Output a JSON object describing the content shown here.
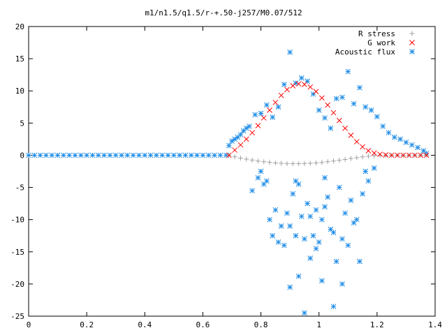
{
  "chart_data": {
    "type": "scatter",
    "title": "m1/n1.5/q1.5/r-+.50-j257/M0.07/512",
    "xlabel": "",
    "ylabel": "",
    "xlim": [
      0,
      1.4
    ],
    "ylim": [
      -25,
      20
    ],
    "x_ticks": [
      "0",
      "0.2",
      "0.4",
      "0.6",
      "0.8",
      "1",
      "1.2",
      "1.4"
    ],
    "y_ticks": [
      "20",
      "15",
      "10",
      "5",
      "0",
      "-5",
      "-10",
      "-15",
      "-20",
      "-25"
    ],
    "x_tick_values": [
      0,
      0.2,
      0.4,
      0.6,
      0.8,
      1.0,
      1.2,
      1.4
    ],
    "y_tick_values": [
      20,
      15,
      10,
      5,
      0,
      -5,
      -10,
      -15,
      -20,
      -25
    ],
    "grid": false,
    "legend_position": "top-right",
    "series": [
      {
        "name": "R stress",
        "marker": "plus",
        "color": "#a0a0a0",
        "x": [
          0.69,
          0.71,
          0.73,
          0.75,
          0.77,
          0.79,
          0.81,
          0.83,
          0.85,
          0.87,
          0.89,
          0.91,
          0.93,
          0.95,
          0.97,
          0.99,
          1.01,
          1.03,
          1.05,
          1.07,
          1.09,
          1.11,
          1.13,
          1.15,
          1.17,
          1.19,
          1.21,
          1.23,
          1.25,
          1.27,
          1.29,
          1.31,
          1.33,
          1.35,
          1.37
        ],
        "y": [
          0,
          -0.25,
          -0.45,
          -0.6,
          -0.75,
          -0.9,
          -1.0,
          -1.1,
          -1.2,
          -1.25,
          -1.3,
          -1.3,
          -1.3,
          -1.28,
          -1.25,
          -1.2,
          -1.12,
          -1.0,
          -0.9,
          -0.78,
          -0.65,
          -0.5,
          -0.38,
          -0.25,
          -0.15,
          -0.08,
          -0.03,
          -0.02,
          -0.01,
          0,
          0,
          0,
          0,
          0,
          0
        ]
      },
      {
        "name": "G work",
        "marker": "cross",
        "color": "#ff0000",
        "x": [
          0.69,
          0.71,
          0.73,
          0.75,
          0.77,
          0.79,
          0.81,
          0.83,
          0.85,
          0.87,
          0.89,
          0.91,
          0.93,
          0.95,
          0.97,
          0.99,
          1.01,
          1.03,
          1.05,
          1.07,
          1.09,
          1.11,
          1.13,
          1.15,
          1.17,
          1.19,
          1.21,
          1.23,
          1.25,
          1.27,
          1.29,
          1.31,
          1.33,
          1.35,
          1.37
        ],
        "y": [
          0,
          0.8,
          1.6,
          2.5,
          3.5,
          4.6,
          5.8,
          7.0,
          8.2,
          9.3,
          10.2,
          10.8,
          11.1,
          11.0,
          10.6,
          9.9,
          8.9,
          7.8,
          6.6,
          5.4,
          4.2,
          3.1,
          2.1,
          1.3,
          0.7,
          0.35,
          0.15,
          0.05,
          0,
          0,
          0,
          0,
          0,
          0,
          0
        ]
      },
      {
        "name": "Acoustic flux",
        "marker": "star",
        "color": "#1e8ce6",
        "x": [
          0.69,
          0.7,
          0.71,
          0.72,
          0.73,
          0.74,
          0.75,
          0.76,
          0.78,
          0.8,
          0.82,
          0.84,
          0.86,
          0.88,
          0.9,
          0.92,
          0.94,
          0.96,
          0.98,
          1.0,
          1.02,
          1.04,
          1.06,
          1.08,
          1.1,
          1.12,
          1.14,
          1.16,
          1.18,
          1.2,
          1.22,
          1.24,
          1.26,
          1.28,
          1.3,
          1.32,
          1.34,
          1.36,
          1.37,
          0.79,
          0.81,
          0.83,
          0.85,
          0.87,
          0.89,
          0.91,
          0.93,
          0.95,
          0.97,
          0.99,
          1.01,
          1.03,
          1.05,
          1.07,
          1.09,
          1.11,
          1.13,
          1.15,
          1.17,
          1.19,
          0.77,
          0.8,
          0.82,
          0.84,
          0.86,
          0.88,
          0.9,
          0.92,
          0.94,
          0.96,
          0.98,
          1.0,
          1.02,
          1.04,
          1.06,
          1.08,
          1.1,
          1.12,
          1.14,
          1.16,
          0.9,
          0.93,
          0.95,
          0.97,
          1.01,
          1.05,
          1.08,
          0.92,
          0.99,
          1.02
        ],
        "y": [
          1.5,
          2.2,
          2.5,
          2.8,
          3.2,
          3.8,
          4.2,
          4.5,
          6.3,
          6.5,
          7.8,
          5.9,
          7.5,
          11.0,
          16.0,
          11.2,
          12.0,
          11.5,
          9.5,
          7.0,
          5.8,
          4.2,
          8.8,
          9.0,
          13.0,
          8.0,
          10.5,
          7.5,
          7.0,
          6.0,
          4.5,
          3.5,
          2.8,
          2.5,
          2.0,
          1.6,
          1.2,
          0.7,
          0.3,
          -3.5,
          -4.5,
          -10.0,
          -8.5,
          -11.0,
          -9.0,
          -6.0,
          -4.5,
          -13.0,
          -9.5,
          -14.5,
          -10.0,
          -6.5,
          -12.0,
          -5.0,
          -9.0,
          -7.0,
          -10.0,
          -6.0,
          -4.0,
          -2.0,
          -5.5,
          -2.5,
          -4.0,
          -12.5,
          -13.5,
          -14.0,
          -11.0,
          -12.5,
          -9.5,
          -7.5,
          -12.5,
          -13.5,
          -8.0,
          -11.5,
          -16.5,
          -13.0,
          -14.0,
          -10.5,
          -16.5,
          -2.5,
          -20.5,
          -18.8,
          -24.5,
          -16.0,
          -19.5,
          -23.5,
          -20.0,
          -4.0,
          -8.5,
          -3.5
        ]
      },
      {
        "name": "",
        "marker": "star",
        "color": "#1e8ce6",
        "x": [
          0.0,
          0.02,
          0.04,
          0.06,
          0.08,
          0.1,
          0.12,
          0.14,
          0.16,
          0.18,
          0.2,
          0.22,
          0.24,
          0.26,
          0.28,
          0.3,
          0.32,
          0.34,
          0.36,
          0.38,
          0.4,
          0.42,
          0.44,
          0.46,
          0.48,
          0.5,
          0.52,
          0.54,
          0.56,
          0.58,
          0.6,
          0.62,
          0.64,
          0.66,
          0.68
        ],
        "y": [
          0,
          0,
          0,
          0,
          0,
          0,
          0,
          0,
          0,
          0,
          0,
          0,
          0,
          0,
          0,
          0,
          0,
          0,
          0,
          0,
          0,
          0,
          0,
          0,
          0,
          0,
          0,
          0,
          0,
          0,
          0,
          0,
          0,
          0,
          0
        ]
      }
    ]
  }
}
